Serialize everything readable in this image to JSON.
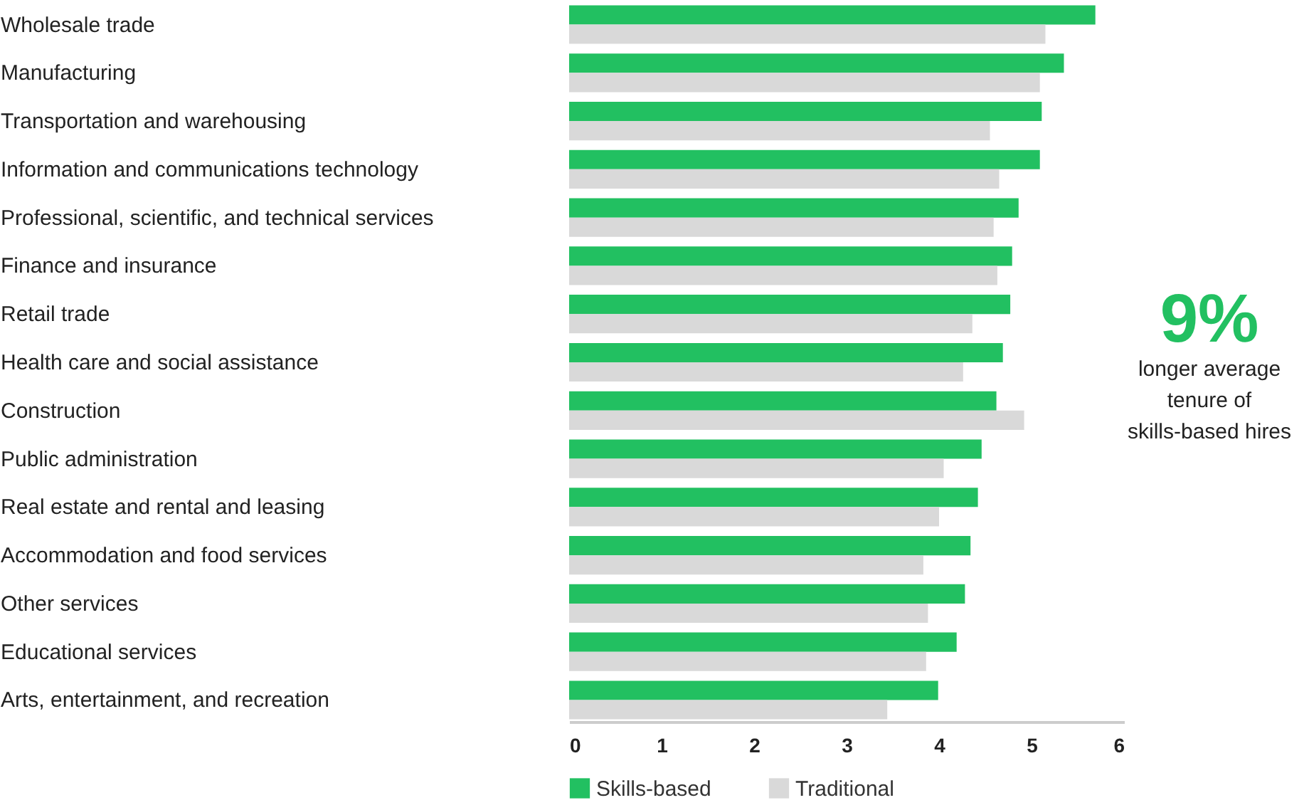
{
  "chart_data": {
    "type": "bar",
    "orientation": "horizontal",
    "categories": [
      "Wholesale trade",
      "Manufacturing",
      "Transportation and warehousing",
      "Information and communications technology",
      "Professional, scientific, and technical services",
      "Finance and insurance",
      "Retail trade",
      "Health care and social assistance",
      "Construction",
      "Public administration",
      "Real estate and rental and leasing",
      "Accommodation and food services",
      "Other services",
      "Educational services",
      "Arts, entertainment, and recreation"
    ],
    "series": [
      {
        "name": "Skills-based",
        "color": "#22c061",
        "values": [
          5.69,
          5.35,
          5.11,
          5.09,
          4.86,
          4.79,
          4.77,
          4.69,
          4.62,
          4.46,
          4.42,
          4.34,
          4.28,
          4.19,
          3.99
        ]
      },
      {
        "name": "Traditional",
        "color": "#d9d9d9",
        "values": [
          5.15,
          5.09,
          4.55,
          4.65,
          4.59,
          4.63,
          4.36,
          4.26,
          4.92,
          4.05,
          4.0,
          3.83,
          3.88,
          3.86,
          3.44
        ]
      }
    ],
    "xlim": [
      0,
      6
    ],
    "xticks": [
      0,
      1,
      2,
      3,
      4,
      5,
      6
    ],
    "grid": false,
    "legend": "bottom",
    "annotations": [
      "9%",
      "longer average\ntenure of\nskills-based hires"
    ]
  }
}
